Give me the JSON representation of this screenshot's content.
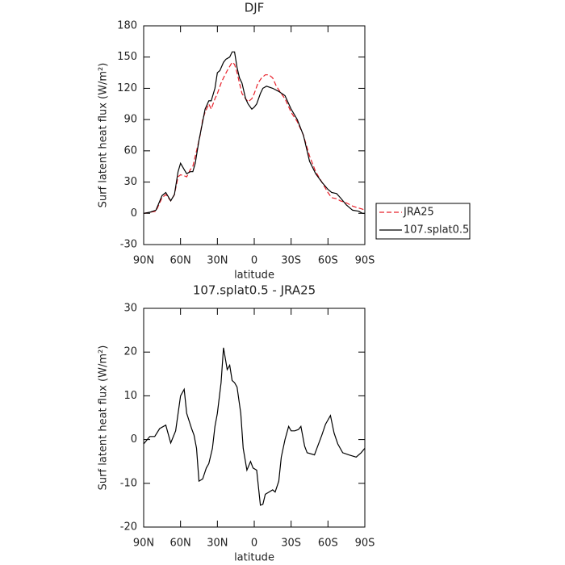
{
  "chart_data": [
    {
      "type": "line",
      "title": "DJF",
      "xlabel": "latitude",
      "ylabel": "Surf latent heat flux (W/m²)",
      "xlim": [
        90,
        -90
      ],
      "xticks": [
        {
          "value": 90,
          "label": "90N"
        },
        {
          "value": 60,
          "label": "60N"
        },
        {
          "value": 30,
          "label": "30N"
        },
        0,
        {
          "value": -30,
          "label": "30S"
        },
        {
          "value": -60,
          "label": "60S"
        },
        {
          "value": -90,
          "label": "90S"
        }
      ],
      "ylim": [
        -30,
        180
      ],
      "yticks": [
        -30,
        0,
        30,
        60,
        90,
        120,
        150,
        180
      ],
      "legend": "outside-right",
      "series": [
        {
          "name": "JRA25",
          "color": "#e8202a",
          "line_style": "dashed",
          "x": [
            90,
            85,
            80,
            75,
            72,
            68,
            65,
            62,
            60,
            57,
            55,
            52,
            50,
            47,
            44,
            42,
            40,
            37,
            35,
            32,
            30,
            27,
            25,
            22,
            18,
            16,
            14,
            12,
            10,
            7,
            5,
            2,
            0,
            -3,
            -6,
            -9,
            -12,
            -15,
            -18,
            -22,
            -25,
            -30,
            -35,
            -40,
            -45,
            -50,
            -55,
            -60,
            -63,
            -67,
            -70,
            -75,
            -80,
            -85,
            -88,
            -90
          ],
          "values": [
            0,
            1,
            2,
            15,
            18,
            12,
            18,
            35,
            37,
            36,
            35,
            42,
            45,
            60,
            75,
            90,
            97,
            105,
            100,
            110,
            115,
            125,
            130,
            137,
            145,
            143,
            135,
            125,
            115,
            110,
            107,
            110,
            115,
            125,
            130,
            133,
            133,
            130,
            122,
            115,
            110,
            97,
            88,
            75,
            55,
            40,
            30,
            20,
            15,
            14,
            12,
            10,
            7,
            5,
            4,
            3
          ]
        },
        {
          "name": "107.splat0.5",
          "color": "#000000",
          "line_style": "solid",
          "x": [
            90,
            85,
            80,
            75,
            72,
            68,
            65,
            62,
            60,
            57,
            55,
            52,
            50,
            48,
            45,
            42,
            40,
            37,
            35,
            32,
            30,
            28,
            25,
            23,
            20,
            18,
            16,
            14,
            12,
            10,
            7,
            5,
            2,
            0,
            -2,
            -5,
            -7,
            -10,
            -15,
            -20,
            -25,
            -30,
            -35,
            -40,
            -45,
            -50,
            -55,
            -60,
            -63,
            -67,
            -70,
            -75,
            -80,
            -85,
            -88,
            -90
          ],
          "values": [
            0,
            1,
            3,
            17,
            20,
            12,
            18,
            40,
            48,
            42,
            38,
            40,
            40,
            48,
            70,
            88,
            100,
            108,
            108,
            120,
            135,
            137,
            145,
            148,
            150,
            155,
            155,
            140,
            130,
            125,
            110,
            105,
            100,
            102,
            105,
            115,
            120,
            122,
            120,
            117,
            113,
            100,
            90,
            75,
            50,
            38,
            30,
            23,
            20,
            19,
            15,
            8,
            3,
            2,
            0,
            0
          ]
        }
      ]
    },
    {
      "type": "line",
      "title": "107.splat0.5 - JRA25",
      "xlabel": "latitude",
      "ylabel": "Surf latent heat flux (W/m²)",
      "xlim": [
        90,
        -90
      ],
      "xticks": [
        {
          "value": 90,
          "label": "90N"
        },
        {
          "value": 60,
          "label": "60N"
        },
        {
          "value": 30,
          "label": "30N"
        },
        0,
        {
          "value": -30,
          "label": "30S"
        },
        {
          "value": -60,
          "label": "60S"
        },
        {
          "value": -90,
          "label": "90S"
        }
      ],
      "ylim": [
        -20,
        30
      ],
      "yticks": [
        -20,
        -10,
        0,
        10,
        20,
        30
      ],
      "series": [
        {
          "color": "#000000",
          "line_style": "solid",
          "x": [
            90,
            85,
            81,
            77,
            72,
            68,
            64,
            60,
            57,
            55,
            51,
            49,
            47,
            45,
            42,
            39,
            37,
            34,
            32,
            30,
            27,
            25,
            22,
            20,
            18,
            16,
            14,
            11,
            9,
            6,
            3,
            1,
            -2,
            -5,
            -7,
            -9,
            -12,
            -15,
            -17,
            -20,
            -22,
            -25,
            -28,
            -30,
            -33,
            -36,
            -38,
            -41,
            -43,
            -49,
            -51,
            -55,
            -58,
            -61,
            -62,
            -65,
            -68,
            -72,
            -77,
            -83,
            -87,
            -90
          ],
          "values": [
            -1,
            0.7,
            0.7,
            2.5,
            3.3,
            -0.8,
            2,
            10,
            11.5,
            6,
            2.5,
            1,
            -2,
            -9.5,
            -9,
            -6.5,
            -5.5,
            -2,
            3,
            6,
            13,
            21,
            16,
            17,
            13.5,
            13,
            12,
            6,
            -2,
            -7,
            -5,
            -6.5,
            -7,
            -15,
            -14.8,
            -12.5,
            -12,
            -11.5,
            -12,
            -9.5,
            -4,
            0,
            3,
            2,
            2,
            2.3,
            3,
            -1.5,
            -3,
            -3.5,
            -2,
            1,
            3.5,
            5,
            5.5,
            1.5,
            -1,
            -3,
            -3.5,
            -4,
            -3,
            -2
          ]
        }
      ]
    }
  ]
}
